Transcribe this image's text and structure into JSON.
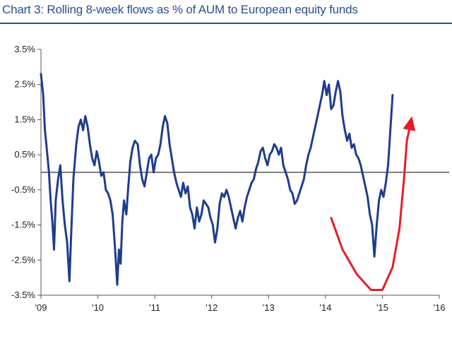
{
  "chart_data": {
    "type": "line",
    "title": "Chart 3: Rolling 8-week flows as % of AUM to European equity funds",
    "xlabel": "",
    "ylabel": "",
    "xlim": [
      2009,
      2016
    ],
    "ylim": [
      -3.5,
      3.5
    ],
    "x_ticks": [
      "'09",
      "'10",
      "'11",
      "'12",
      "'13",
      "'14",
      "'15",
      "'16"
    ],
    "y_ticks": [
      "3.5%",
      "2.5%",
      "1.5%",
      "0.5%",
      "-0.5%",
      "-1.5%",
      "-2.5%",
      "-3.5%"
    ],
    "y_tick_values": [
      3.5,
      2.5,
      1.5,
      0.5,
      -0.5,
      -1.5,
      -2.5,
      -3.5
    ],
    "reference_line": 0,
    "grid": false,
    "series": [
      {
        "color": "#1f3d8c",
        "points": [
          [
            2009.0,
            2.8
          ],
          [
            2009.04,
            2.2
          ],
          [
            2009.07,
            1.2
          ],
          [
            2009.1,
            0.7
          ],
          [
            2009.14,
            0.0
          ],
          [
            2009.17,
            -0.8
          ],
          [
            2009.2,
            -1.4
          ],
          [
            2009.23,
            -2.2
          ],
          [
            2009.26,
            -0.8
          ],
          [
            2009.3,
            -0.2
          ],
          [
            2009.34,
            0.2
          ],
          [
            2009.38,
            -0.8
          ],
          [
            2009.42,
            -1.5
          ],
          [
            2009.46,
            -2.0
          ],
          [
            2009.5,
            -3.1
          ],
          [
            2009.53,
            -1.8
          ],
          [
            2009.57,
            -0.2
          ],
          [
            2009.62,
            0.8
          ],
          [
            2009.66,
            1.3
          ],
          [
            2009.7,
            1.5
          ],
          [
            2009.74,
            1.2
          ],
          [
            2009.78,
            1.6
          ],
          [
            2009.82,
            1.3
          ],
          [
            2009.86,
            0.8
          ],
          [
            2009.9,
            0.4
          ],
          [
            2009.94,
            0.2
          ],
          [
            2009.98,
            0.6
          ],
          [
            2010.02,
            0.3
          ],
          [
            2010.06,
            -0.1
          ],
          [
            2010.1,
            0.0
          ],
          [
            2010.14,
            -0.5
          ],
          [
            2010.18,
            -0.6
          ],
          [
            2010.22,
            -0.8
          ],
          [
            2010.26,
            -1.2
          ],
          [
            2010.3,
            -2.1
          ],
          [
            2010.34,
            -3.2
          ],
          [
            2010.37,
            -2.2
          ],
          [
            2010.4,
            -2.6
          ],
          [
            2010.43,
            -1.4
          ],
          [
            2010.46,
            -0.8
          ],
          [
            2010.5,
            -1.2
          ],
          [
            2010.53,
            -0.5
          ],
          [
            2010.57,
            0.3
          ],
          [
            2010.61,
            0.7
          ],
          [
            2010.65,
            0.9
          ],
          [
            2010.7,
            0.8
          ],
          [
            2010.74,
            0.2
          ],
          [
            2010.78,
            -0.2
          ],
          [
            2010.82,
            -0.4
          ],
          [
            2010.86,
            0.0
          ],
          [
            2010.9,
            0.4
          ],
          [
            2010.94,
            0.5
          ],
          [
            2010.98,
            0.0
          ],
          [
            2011.02,
            0.4
          ],
          [
            2011.06,
            0.5
          ],
          [
            2011.1,
            0.8
          ],
          [
            2011.14,
            1.3
          ],
          [
            2011.18,
            1.6
          ],
          [
            2011.22,
            1.4
          ],
          [
            2011.26,
            0.8
          ],
          [
            2011.3,
            0.4
          ],
          [
            2011.34,
            0.0
          ],
          [
            2011.38,
            -0.3
          ],
          [
            2011.42,
            -0.5
          ],
          [
            2011.46,
            -0.7
          ],
          [
            2011.5,
            -0.3
          ],
          [
            2011.54,
            -0.6
          ],
          [
            2011.58,
            -0.4
          ],
          [
            2011.62,
            -1.0
          ],
          [
            2011.66,
            -1.2
          ],
          [
            2011.7,
            -1.6
          ],
          [
            2011.74,
            -1.0
          ],
          [
            2011.78,
            -1.4
          ],
          [
            2011.82,
            -1.2
          ],
          [
            2011.86,
            -0.8
          ],
          [
            2011.9,
            -0.9
          ],
          [
            2011.94,
            -1.0
          ],
          [
            2011.98,
            -1.3
          ],
          [
            2012.02,
            -1.5
          ],
          [
            2012.06,
            -2.0
          ],
          [
            2012.1,
            -1.6
          ],
          [
            2012.14,
            -0.9
          ],
          [
            2012.18,
            -0.6
          ],
          [
            2012.22,
            -0.7
          ],
          [
            2012.26,
            -0.5
          ],
          [
            2012.3,
            -0.7
          ],
          [
            2012.34,
            -1.0
          ],
          [
            2012.38,
            -1.3
          ],
          [
            2012.42,
            -1.6
          ],
          [
            2012.46,
            -1.3
          ],
          [
            2012.5,
            -1.1
          ],
          [
            2012.54,
            -1.4
          ],
          [
            2012.58,
            -1.0
          ],
          [
            2012.62,
            -0.7
          ],
          [
            2012.66,
            -0.5
          ],
          [
            2012.7,
            -0.3
          ],
          [
            2012.74,
            -0.2
          ],
          [
            2012.78,
            0.1
          ],
          [
            2012.82,
            0.3
          ],
          [
            2012.86,
            0.6
          ],
          [
            2012.9,
            0.7
          ],
          [
            2012.94,
            0.4
          ],
          [
            2012.98,
            0.2
          ],
          [
            2013.02,
            0.5
          ],
          [
            2013.06,
            0.6
          ],
          [
            2013.1,
            0.8
          ],
          [
            2013.14,
            0.7
          ],
          [
            2013.18,
            0.5
          ],
          [
            2013.22,
            0.7
          ],
          [
            2013.26,
            0.2
          ],
          [
            2013.3,
            0.0
          ],
          [
            2013.34,
            -0.2
          ],
          [
            2013.38,
            -0.5
          ],
          [
            2013.42,
            -0.6
          ],
          [
            2013.46,
            -0.9
          ],
          [
            2013.5,
            -0.8
          ],
          [
            2013.54,
            -0.6
          ],
          [
            2013.58,
            -0.4
          ],
          [
            2013.62,
            -0.2
          ],
          [
            2013.66,
            0.2
          ],
          [
            2013.7,
            0.5
          ],
          [
            2013.74,
            0.7
          ],
          [
            2013.78,
            1.0
          ],
          [
            2013.82,
            1.3
          ],
          [
            2013.86,
            1.6
          ],
          [
            2013.9,
            1.9
          ],
          [
            2013.94,
            2.2
          ],
          [
            2013.98,
            2.6
          ],
          [
            2014.02,
            2.2
          ],
          [
            2014.06,
            2.5
          ],
          [
            2014.1,
            1.8
          ],
          [
            2014.14,
            1.9
          ],
          [
            2014.18,
            2.3
          ],
          [
            2014.22,
            2.6
          ],
          [
            2014.26,
            2.3
          ],
          [
            2014.3,
            1.6
          ],
          [
            2014.34,
            1.2
          ],
          [
            2014.38,
            0.9
          ],
          [
            2014.42,
            1.1
          ],
          [
            2014.46,
            0.7
          ],
          [
            2014.5,
            0.8
          ],
          [
            2014.54,
            0.5
          ],
          [
            2014.58,
            0.4
          ],
          [
            2014.62,
            0.2
          ],
          [
            2014.66,
            -0.1
          ],
          [
            2014.7,
            -0.4
          ],
          [
            2014.74,
            -0.7
          ],
          [
            2014.78,
            -1.2
          ],
          [
            2014.82,
            -1.5
          ],
          [
            2014.86,
            -2.4
          ],
          [
            2014.9,
            -1.5
          ],
          [
            2014.94,
            -0.8
          ],
          [
            2014.98,
            -0.5
          ],
          [
            2015.02,
            -0.7
          ],
          [
            2015.06,
            -0.3
          ],
          [
            2015.1,
            0.2
          ],
          [
            2015.14,
            1.2
          ],
          [
            2015.18,
            2.2
          ]
        ]
      }
    ],
    "annotation": {
      "color": "#e41e26",
      "shape": "curved-arrow",
      "path": [
        [
          2014.1,
          -1.3
        ],
        [
          2014.3,
          -2.2
        ],
        [
          2014.55,
          -2.9
        ],
        [
          2014.8,
          -3.35
        ],
        [
          2015.0,
          -3.35
        ],
        [
          2015.18,
          -2.7
        ],
        [
          2015.3,
          -1.6
        ],
        [
          2015.38,
          -0.2
        ],
        [
          2015.43,
          0.9
        ],
        [
          2015.47,
          1.2
        ]
      ],
      "arrow_tip": [
        2015.52,
        1.6
      ]
    }
  }
}
